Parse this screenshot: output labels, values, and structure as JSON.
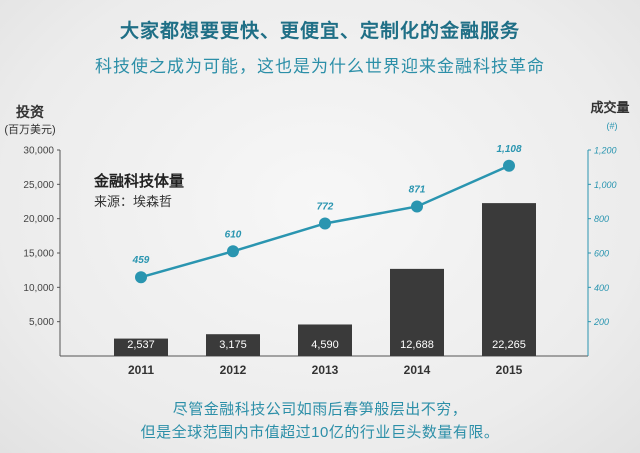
{
  "header": {
    "title": "大家都想要更快、更便宜、定制化的金融服务",
    "subtitle": "科技使之成为可能，这也是为什么世界迎来金融科技革命"
  },
  "footer": {
    "line1": "尽管金融科技公司如雨后春笋般层出不穷，",
    "line2": "但是全球范围内市值超过10亿的行业巨头数量有限。"
  },
  "colors": {
    "bar": "#3a3a3a",
    "line": "#2a95b0",
    "accent": "#1f6f86",
    "axis_text": "#444444",
    "right_axis_text": "#2a95b0"
  },
  "chart_data": {
    "type": "bar",
    "title": "金融科技体量",
    "source": "来源：埃森哲",
    "categories": [
      "2011",
      "2012",
      "2013",
      "2014",
      "2015"
    ],
    "y_left": {
      "label": "投资",
      "unit": "(百万美元)",
      "ticks": [
        "5,000",
        "10,000",
        "15,000",
        "20,000",
        "25,000",
        "30,000"
      ],
      "tick_values": [
        5000,
        10000,
        15000,
        20000,
        25000,
        30000
      ],
      "range": [
        0,
        30000
      ]
    },
    "y_right": {
      "label": "成交量",
      "unit": "(#)",
      "ticks": [
        "200",
        "400",
        "600",
        "800",
        "1,000",
        "1,200"
      ],
      "tick_values": [
        200,
        400,
        600,
        800,
        1000,
        1200
      ],
      "range": [
        0,
        1200
      ]
    },
    "series": [
      {
        "type": "bar",
        "axis": "left",
        "values": [
          2537,
          3175,
          4590,
          12688,
          22265
        ],
        "labels": [
          "2,537",
          "3,175",
          "4,590",
          "12,688",
          "22,265"
        ]
      },
      {
        "type": "line",
        "axis": "right",
        "values": [
          459,
          610,
          772,
          871,
          1108
        ],
        "labels": [
          "459",
          "610",
          "772",
          "871",
          "1,108"
        ]
      }
    ],
    "grid": false
  }
}
